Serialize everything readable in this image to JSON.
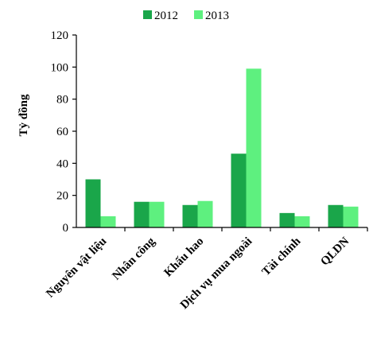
{
  "chart_data": {
    "type": "bar",
    "title": "",
    "ylabel": "Tỷ đồng",
    "xlabel": "",
    "ylim": [
      0,
      120
    ],
    "yticks": [
      0,
      20,
      40,
      60,
      80,
      100,
      120
    ],
    "legend_position": "top-center",
    "grid": false,
    "categories": [
      "Nguyên vật liệu",
      "Nhân công",
      "Khấu hao",
      "Dịch vụ mua ngoài",
      "Tài chính",
      "QLDN"
    ],
    "series": [
      {
        "name": "2012",
        "color": "#1aa64a",
        "values": [
          30,
          16,
          14,
          46,
          9,
          14
        ]
      },
      {
        "name": "2013",
        "color": "#5ef07f",
        "values": [
          7,
          16,
          16.5,
          99,
          7,
          13
        ]
      }
    ]
  }
}
